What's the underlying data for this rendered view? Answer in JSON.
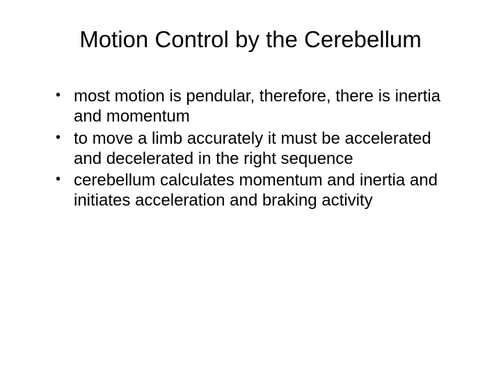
{
  "slide": {
    "title": "Motion Control by the Cerebellum",
    "title_fontsize": 33,
    "title_color": "#000000",
    "background_color": "#ffffff",
    "bullets": [
      "most motion is pendular, therefore, there is inertia and momentum",
      "to move a limb accurately it must be accelerated and decelerated in the right sequence",
      "cerebellum calculates momentum and inertia and initiates acceleration and braking activity"
    ],
    "bullet_fontsize": 24,
    "bullet_color": "#000000",
    "font_family": "Arial"
  }
}
